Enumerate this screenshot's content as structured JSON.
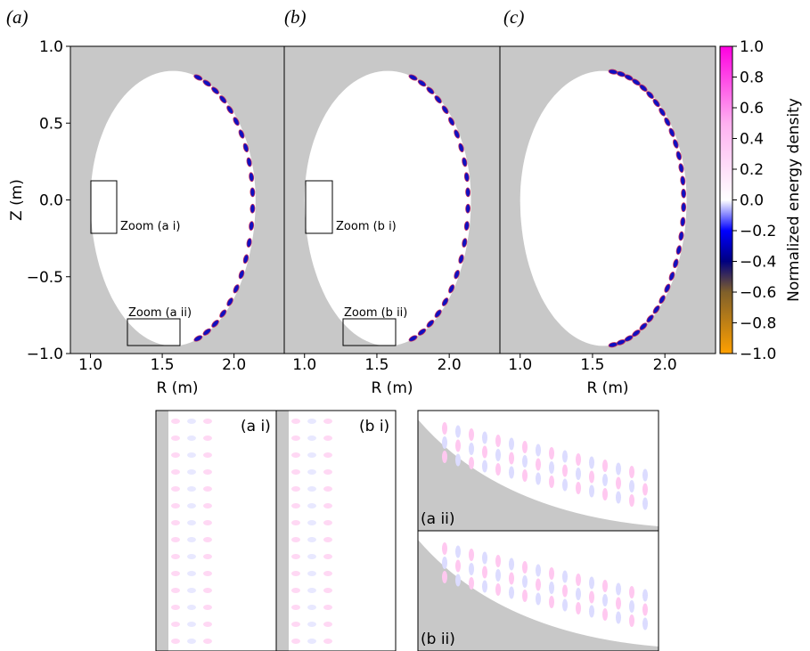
{
  "chart_data": [
    {
      "type": "heatmap",
      "panel_label": "(a)",
      "xlabel": "R (m)",
      "ylabel": "Z (m)",
      "xlim": [
        0.86,
        2.35
      ],
      "ylim": [
        -1,
        1
      ],
      "xticks": [
        {
          "value": 1,
          "label": "1.0"
        },
        {
          "value": 1.5,
          "label": "1.5"
        },
        {
          "value": 2,
          "label": "2.0"
        }
      ],
      "yticks": [
        {
          "value": 1,
          "label": "1.0"
        },
        {
          "value": 0.5,
          "label": "0.5"
        },
        {
          "value": 0,
          "label": "0.0"
        },
        {
          "value": -0.5,
          "label": "−0.5"
        },
        {
          "value": -1,
          "label": "−1.0"
        }
      ],
      "annotations": [
        "Zoom (a i)",
        "Zoom (a ii)"
      ]
    },
    {
      "type": "heatmap",
      "panel_label": "(b)",
      "xlabel": "R (m)",
      "xlim": [
        0.86,
        2.35
      ],
      "ylim": [
        -1,
        1
      ],
      "xticks": [
        {
          "value": 1,
          "label": "1.0"
        },
        {
          "value": 1.5,
          "label": "1.5"
        },
        {
          "value": 2,
          "label": "2.0"
        }
      ],
      "annotations": [
        "Zoom (b i)",
        "Zoom (b ii)"
      ]
    },
    {
      "type": "heatmap",
      "panel_label": "(c)",
      "xlabel": "R (m)",
      "xlim": [
        0.86,
        2.35
      ],
      "ylim": [
        -1,
        1
      ],
      "xticks": [
        {
          "value": 1,
          "label": "1.0"
        },
        {
          "value": 1.5,
          "label": "1.5"
        },
        {
          "value": 2,
          "label": "2.0"
        }
      ]
    },
    {
      "type": "colorbar",
      "label": "Normalized energy density",
      "ylim": [
        -1,
        1
      ],
      "yticks": [
        {
          "value": 1,
          "label": "1.0"
        },
        0.8,
        0.6,
        0.4,
        0.2,
        {
          "value": 0,
          "label": "0.0"
        },
        {
          "value": -0.2,
          "label": "−0.2"
        },
        {
          "value": -0.4,
          "label": "−0.4"
        },
        {
          "value": -0.6,
          "label": "−0.6"
        },
        {
          "value": -0.8,
          "label": "−0.8"
        },
        {
          "value": -1,
          "label": "−1.0"
        }
      ]
    },
    {
      "type": "inset",
      "label": "(a i)"
    },
    {
      "type": "inset",
      "label": "(b i)"
    },
    {
      "type": "inset",
      "label": "(a ii)"
    },
    {
      "type": "inset",
      "label": "(b ii)"
    }
  ]
}
